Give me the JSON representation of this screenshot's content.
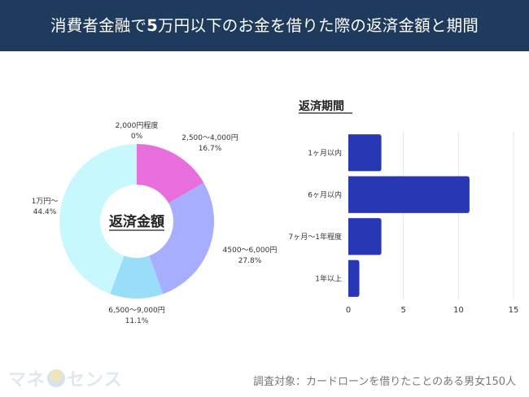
{
  "header": {
    "title_part1": "消費者金融で",
    "title_bold": "5",
    "title_part2": "万円以下のお金を借りた際の返済金額と期間"
  },
  "footer": {
    "survey_note": "調査対象：カードローンを借りたことのある男女150人",
    "logo_part1": "マネ",
    "logo_part2": "センス"
  },
  "colors": {
    "header_bg": "#1e3a5c",
    "bar": "#2838b5",
    "grid": "#e6e6e6"
  },
  "chart_data": [
    {
      "type": "pie",
      "donut": true,
      "title": "返済金額",
      "slices": [
        {
          "label": "2,000円程度",
          "value": 0,
          "display": "0%",
          "color": "#e86fdb"
        },
        {
          "label": "2,500〜4,000円",
          "value": 16.7,
          "display": "16.7%",
          "color": "#e86fdb"
        },
        {
          "label": "4500〜6,000円",
          "value": 27.8,
          "display": "27.8%",
          "color": "#a8aeff"
        },
        {
          "label": "6,500〜9,000円",
          "value": 11.1,
          "display": "11.1%",
          "color": "#99ddf9"
        },
        {
          "label": "1万円〜",
          "value": 44.4,
          "display": "44.4%",
          "color": "#c6f8fc"
        }
      ]
    },
    {
      "type": "bar",
      "orientation": "horizontal",
      "title": "返済期間",
      "categories": [
        "1ヶ月以内",
        "6ヶ月以内",
        "7ヶ月〜1年程度",
        "1年以上"
      ],
      "values": [
        3,
        11,
        3,
        1
      ],
      "xlim": [
        0,
        15
      ],
      "xticks": [
        "0",
        "5",
        "10",
        "15"
      ],
      "grid": true
    }
  ]
}
